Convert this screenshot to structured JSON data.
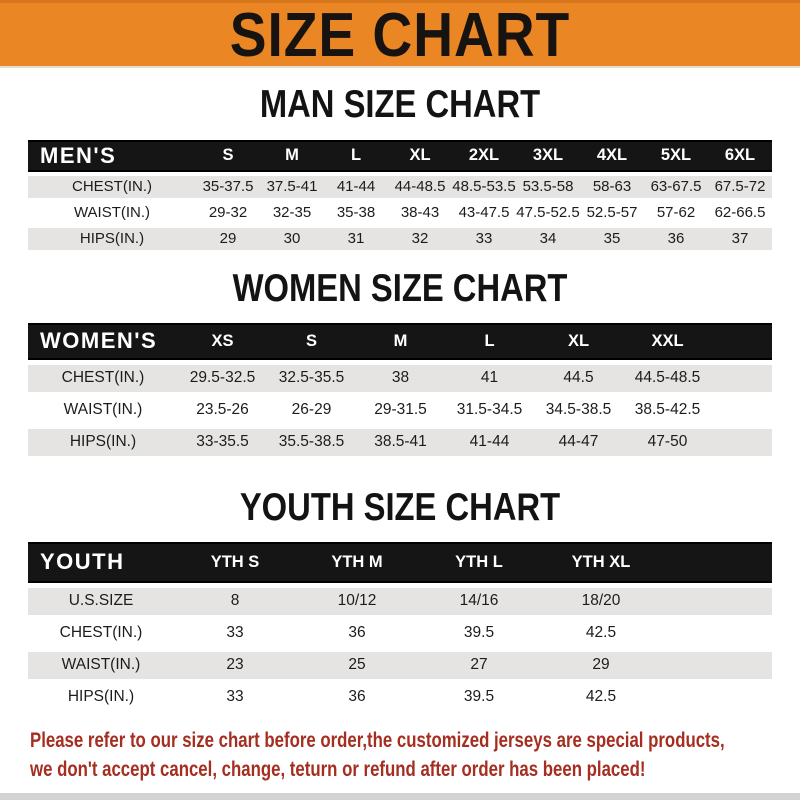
{
  "banner": {
    "title": "SIZE CHART"
  },
  "sections": [
    {
      "title": "MAN SIZE CHART",
      "group_label": "MEN'S",
      "columns": [
        "S",
        "M",
        "L",
        "XL",
        "2XL",
        "3XL",
        "4XL",
        "5XL",
        "6XL"
      ],
      "rows": [
        {
          "label": "CHEST(IN.)",
          "values": [
            "35-37.5",
            "37.5-41",
            "41-44",
            "44-48.5",
            "48.5-53.5",
            "53.5-58",
            "58-63",
            "63-67.5",
            "67.5-72"
          ]
        },
        {
          "label": "WAIST(IN.)",
          "values": [
            "29-32",
            "32-35",
            "35-38",
            "38-43",
            "43-47.5",
            "47.5-52.5",
            "52.5-57",
            "57-62",
            "62-66.5"
          ]
        },
        {
          "label": "HIPS(IN.)",
          "values": [
            "29",
            "30",
            "31",
            "32",
            "33",
            "34",
            "35",
            "36",
            "37"
          ]
        }
      ]
    },
    {
      "title": "WOMEN SIZE CHART",
      "group_label": "WOMEN'S",
      "columns": [
        "XS",
        "S",
        "M",
        "L",
        "XL",
        "XXL"
      ],
      "rows": [
        {
          "label": "CHEST(IN.)",
          "values": [
            "29.5-32.5",
            "32.5-35.5",
            "38",
            "41",
            "44.5",
            "44.5-48.5"
          ]
        },
        {
          "label": "WAIST(IN.)",
          "values": [
            "23.5-26",
            "26-29",
            "29-31.5",
            "31.5-34.5",
            "34.5-38.5",
            "38.5-42.5"
          ]
        },
        {
          "label": "HIPS(IN.)",
          "values": [
            "33-35.5",
            "35.5-38.5",
            "38.5-41",
            "41-44",
            "44-47",
            "47-50"
          ]
        }
      ]
    },
    {
      "title": "YOUTH SIZE CHART",
      "group_label": "YOUTH",
      "columns": [
        "YTH S",
        "YTH M",
        "YTH L",
        "YTH XL"
      ],
      "rows": [
        {
          "label": "U.S.SIZE",
          "values": [
            "8",
            "10/12",
            "14/16",
            "18/20"
          ]
        },
        {
          "label": "CHEST(IN.)",
          "values": [
            "33",
            "36",
            "39.5",
            "42.5"
          ]
        },
        {
          "label": "WAIST(IN.)",
          "values": [
            "23",
            "25",
            "27",
            "29"
          ]
        },
        {
          "label": "HIPS(IN.)",
          "values": [
            "33",
            "36",
            "39.5",
            "42.5"
          ]
        }
      ]
    }
  ],
  "footer": {
    "line1": "Please refer to our size chart before order,the customized jerseys are special products,",
    "line2": "we don't accept cancel, change, teturn or refund after order has been placed!"
  },
  "colors": {
    "banner_orange": "#EA8624",
    "header_bar_black": "#151515",
    "row_gray": "#E5E4E2",
    "footer_red": "#A52E21"
  }
}
